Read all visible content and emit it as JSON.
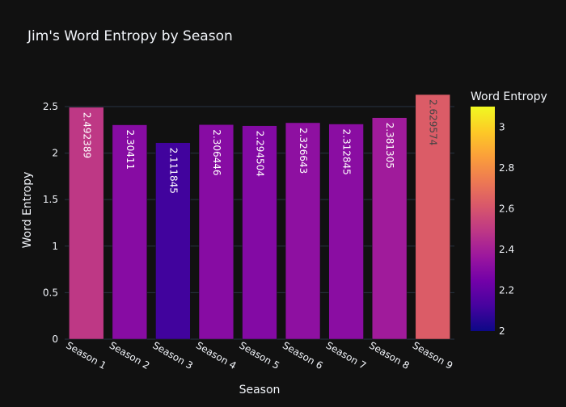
{
  "chart_data": {
    "type": "bar",
    "title": "Jim's Word Entropy by Season",
    "xlabel": "Season",
    "ylabel": "Word Entropy",
    "ylim": [
      0,
      2.63
    ],
    "y_ticks": [
      "0",
      "0.5",
      "1",
      "1.5",
      "2",
      "2.5"
    ],
    "grid": "horizontal",
    "categories": [
      "Season 1",
      "Season 2",
      "Season 3",
      "Season 4",
      "Season 5",
      "Season 6",
      "Season 7",
      "Season 8",
      "Season 9"
    ],
    "values": [
      2.492389,
      2.30411,
      2.111845,
      2.306446,
      2.294504,
      2.326643,
      2.312845,
      2.381305,
      2.629574
    ],
    "value_labels": [
      "2.492389",
      "2.30411",
      "2.111845",
      "2.306446",
      "2.294504",
      "2.326643",
      "2.312845",
      "2.381305",
      "2.629574"
    ],
    "colorbar": {
      "title": "Word Entropy",
      "range": [
        2.0,
        3.1
      ],
      "ticks": [
        "2",
        "2.2",
        "2.4",
        "2.6",
        "2.8",
        "3"
      ],
      "colorscale": [
        "#0d0887",
        "#46039f",
        "#7201a8",
        "#9c179e",
        "#bd3786",
        "#d8576b",
        "#ed7953",
        "#fb9f3a",
        "#fdca26",
        "#f0f921"
      ]
    }
  }
}
